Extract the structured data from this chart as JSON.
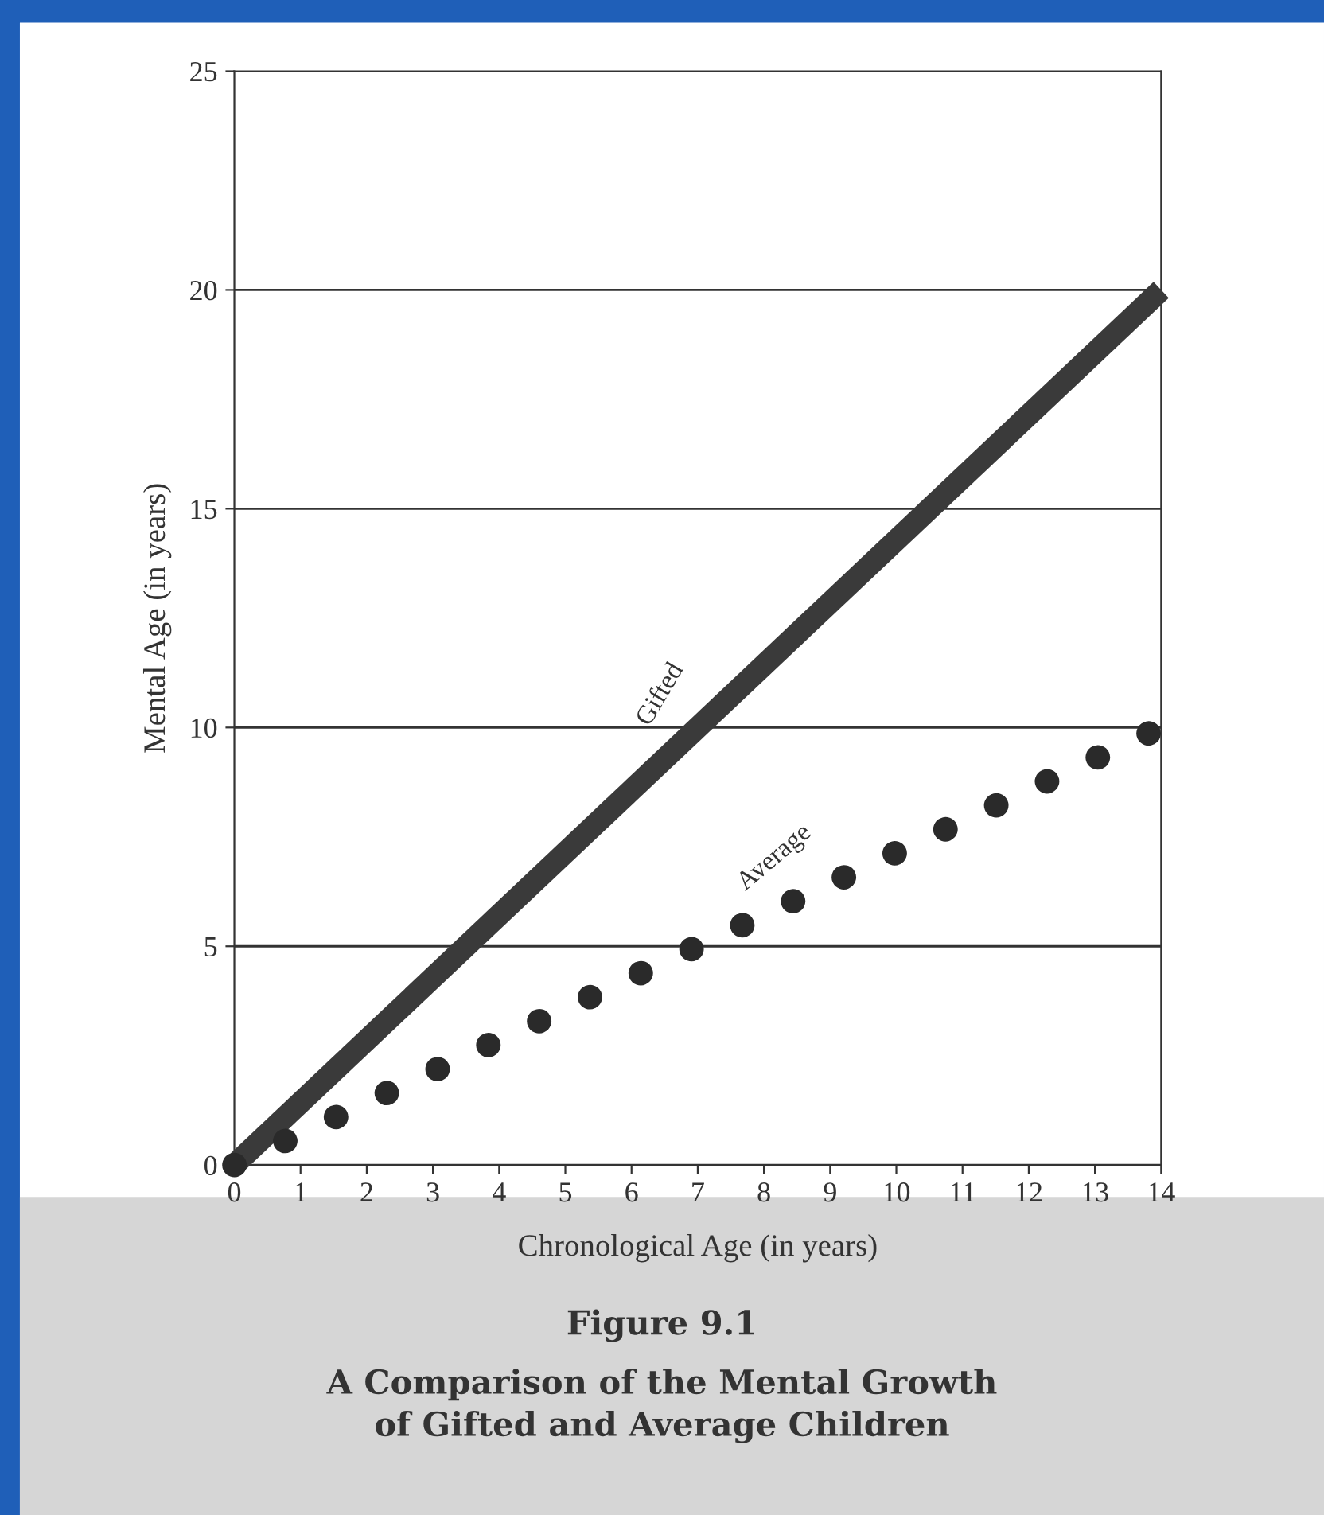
{
  "chart_data": {
    "type": "line",
    "title": "Figure 9.1",
    "subtitle": "A Comparison of the Mental Growth\nof Gifted and Average Children",
    "xlabel": "Chronological Age (in years)",
    "ylabel": "Mental Age (in years)",
    "x": [
      0,
      14
    ],
    "series": [
      {
        "name": "Gifted",
        "color": "#3a3a3a",
        "values": [
          0,
          20
        ],
        "line_style": "solid"
      },
      {
        "name": "Average",
        "color": "#2a2a2a",
        "values": [
          0,
          10
        ],
        "line_style": "dotted"
      }
    ],
    "xlim": [
      0,
      14
    ],
    "ylim": [
      0,
      25
    ],
    "xticks": [
      0,
      1,
      2,
      3,
      4,
      5,
      6,
      7,
      8,
      9,
      10,
      11,
      12,
      13,
      14
    ],
    "yticks": [
      0,
      5,
      10,
      15,
      20,
      25
    ],
    "grid": "y",
    "legend": false
  }
}
